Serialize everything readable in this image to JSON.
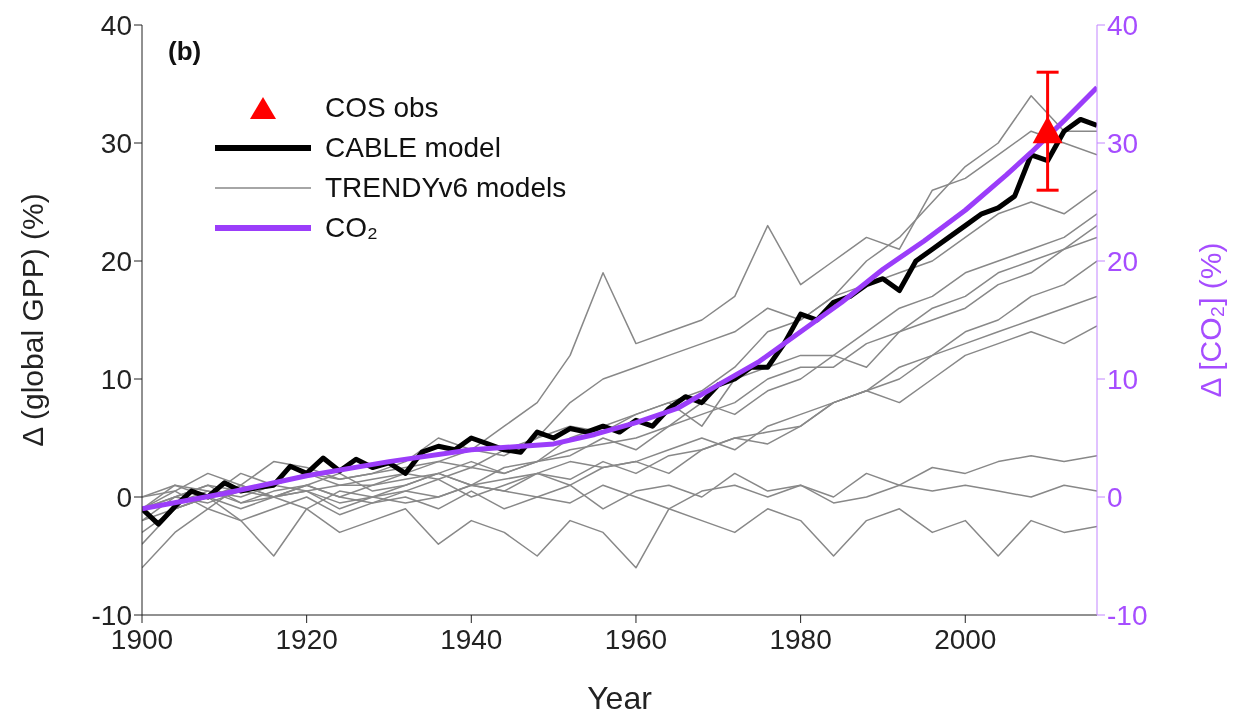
{
  "chart_data": {
    "type": "line",
    "xlabel": "Year",
    "ylabel": "Δ (global GPP) (%)",
    "y2label": "Δ [CO₂] (%)",
    "annotations": [
      "(b)"
    ],
    "xlim": [
      1900,
      2016
    ],
    "xticks": [
      1900,
      1920,
      1940,
      1960,
      1980,
      2000
    ],
    "ylim": [
      -10,
      40
    ],
    "yticks": [
      -10,
      0,
      10,
      20,
      30,
      40
    ],
    "y2lim": [
      -10,
      40
    ],
    "y2ticks": [
      -10,
      0,
      10,
      20,
      30,
      40
    ],
    "legend": "top left",
    "grid": false,
    "x": [
      1900,
      1904,
      1908,
      1912,
      1916,
      1920,
      1924,
      1928,
      1932,
      1936,
      1940,
      1944,
      1948,
      1952,
      1956,
      1960,
      1964,
      1968,
      1972,
      1976,
      1980,
      1984,
      1988,
      1992,
      1996,
      2000,
      2004,
      2008,
      2012,
      2016
    ],
    "series": [
      {
        "type": "scatter",
        "name": "COS obs",
        "color": "#ff0000",
        "marker": "triangle",
        "x": [
          2010
        ],
        "values": [
          31
        ],
        "errors": [
          [
            26,
            36
          ]
        ]
      },
      {
        "name": "CABLE model",
        "color": "#000000",
        "x": [
          1900,
          1902,
          1904,
          1906,
          1908,
          1910,
          1912,
          1914,
          1916,
          1918,
          1920,
          1922,
          1924,
          1926,
          1928,
          1930,
          1932,
          1934,
          1936,
          1938,
          1940,
          1942,
          1944,
          1946,
          1948,
          1950,
          1952,
          1954,
          1956,
          1958,
          1960,
          1962,
          1964,
          1966,
          1968,
          1970,
          1972,
          1974,
          1976,
          1978,
          1980,
          1982,
          1984,
          1986,
          1988,
          1990,
          1992,
          1994,
          1996,
          1998,
          2000,
          2002,
          2004,
          2006,
          2008,
          2010,
          2012,
          2014,
          2016
        ],
        "values": [
          -1,
          -2.3,
          -0.8,
          0.5,
          0,
          1.2,
          0.5,
          0.8,
          1,
          2.6,
          2,
          3.3,
          2.2,
          3.2,
          2.5,
          2.9,
          2,
          3.8,
          4.3,
          4,
          5,
          4.5,
          4,
          3.8,
          5.5,
          5,
          5.8,
          5.5,
          6,
          5.5,
          6.5,
          6,
          7.5,
          8.5,
          8,
          9.5,
          10,
          11,
          11,
          13,
          15.5,
          15,
          16.5,
          17,
          18,
          18.5,
          17.5,
          20,
          21,
          22,
          23,
          24,
          24.5,
          25.5,
          29,
          28.5,
          31,
          32,
          31.5
        ]
      },
      {
        "name": "TRENDYv6 models",
        "color": "#888888",
        "values": [
          -1,
          0,
          1,
          0.5,
          1,
          2,
          1.5,
          2,
          2.5,
          3,
          4,
          3.5,
          5,
          6,
          5.5,
          7,
          8,
          9,
          11,
          14,
          15,
          17,
          20,
          22,
          25,
          28,
          30,
          34,
          31,
          31
        ]
      },
      {
        "name": "CO₂",
        "color": "#9b3dfa",
        "axis": "y2",
        "x": [
          1900,
          1910,
          1920,
          1930,
          1940,
          1950,
          1955,
          1960,
          1965,
          1970,
          1975,
          1980,
          1985,
          1990,
          1995,
          2000,
          2005,
          2008,
          2012,
          2016
        ],
        "values": [
          -1,
          0.3,
          1.8,
          3,
          4,
          4.5,
          5.3,
          6.3,
          7.5,
          9.5,
          11.5,
          14,
          16.5,
          19.3,
          21.7,
          24.3,
          27.3,
          29.2,
          31.9,
          34.7
        ]
      },
      {
        "type": "line",
        "color": "#888888",
        "values": [
          -1,
          0.5,
          2,
          1,
          3,
          2.5,
          1.5,
          2,
          3,
          5,
          4,
          6,
          8,
          12,
          19,
          13,
          14,
          15,
          17,
          23,
          18,
          20,
          22,
          21,
          26,
          27,
          29,
          31,
          30,
          29
        ]
      },
      {
        "type": "line",
        "color": "#888888",
        "values": [
          -1,
          1,
          0,
          2,
          1,
          2,
          1,
          1.5,
          2,
          3,
          2.5,
          4,
          5,
          8,
          10,
          11,
          12,
          13,
          14,
          16,
          15,
          17,
          18,
          19,
          20,
          22,
          24,
          25,
          24,
          26
        ]
      },
      {
        "type": "line",
        "color": "#888888",
        "values": [
          0,
          0.5,
          -1,
          1,
          0,
          1,
          2,
          0.5,
          1,
          2,
          3,
          2,
          3,
          5,
          6,
          7,
          8,
          6,
          10,
          11,
          12,
          12,
          14,
          16,
          17,
          19,
          20,
          21,
          22,
          24
        ]
      },
      {
        "type": "line",
        "color": "#888888",
        "values": [
          -2,
          0,
          1,
          -0.5,
          0.5,
          1,
          0,
          1,
          1.5,
          2,
          1,
          2.5,
          3,
          4,
          4.5,
          5,
          6,
          7,
          8,
          10,
          11,
          11,
          13,
          14,
          16,
          17,
          19,
          20,
          21,
          23
        ]
      },
      {
        "type": "line",
        "color": "#888888",
        "values": [
          -1,
          -0.5,
          0.5,
          0,
          1,
          0.5,
          1,
          1,
          2,
          1.5,
          2.5,
          2,
          3,
          3.5,
          5,
          4,
          6,
          8,
          7,
          9,
          10,
          12,
          11,
          14,
          15,
          16,
          18,
          19,
          21,
          22
        ]
      },
      {
        "type": "line",
        "color": "#888888",
        "values": [
          -3,
          -1,
          0,
          1,
          0,
          0.5,
          -0.5,
          0,
          1,
          2,
          1,
          1.5,
          2,
          3,
          2.5,
          3,
          4,
          5,
          4,
          6,
          7,
          8,
          9,
          11,
          12,
          14,
          15,
          17,
          18,
          20
        ]
      },
      {
        "type": "line",
        "color": "#888888",
        "values": [
          -1,
          0,
          -0.5,
          0.5,
          0,
          1,
          0,
          -0.5,
          0.5,
          1.5,
          0,
          1,
          2,
          1,
          2.5,
          3,
          2,
          4,
          5,
          5.5,
          6,
          8,
          9,
          10,
          12,
          13,
          14,
          15,
          16,
          17
        ]
      },
      {
        "type": "line",
        "color": "#888888",
        "values": [
          -2,
          -1,
          0,
          -1,
          0,
          0.5,
          -1,
          0,
          0.5,
          0,
          1,
          0.5,
          2,
          1.5,
          3,
          2,
          3.5,
          4,
          5,
          4.5,
          6,
          8,
          9,
          8,
          10,
          12,
          13,
          14,
          13,
          14.5
        ]
      },
      {
        "type": "line",
        "color": "#888888",
        "values": [
          0,
          1,
          0.5,
          -0.5,
          0,
          -1,
          0.5,
          0,
          -0.5,
          0,
          1,
          0.5,
          0,
          1,
          -1,
          0.5,
          1,
          0,
          2,
          0.5,
          1,
          0,
          2,
          1,
          2.5,
          2,
          3,
          3.5,
          3,
          3.5
        ]
      },
      {
        "type": "line",
        "color": "#888888",
        "values": [
          -4,
          -1,
          0,
          -2,
          -1,
          0,
          -1.5,
          -0.5,
          0,
          -1,
          0.5,
          -1,
          0,
          -0.5,
          1,
          0,
          -1,
          0.5,
          1,
          0,
          1,
          -0.5,
          0,
          1,
          0.5,
          1,
          0.5,
          0,
          1,
          0.5
        ]
      },
      {
        "type": "line",
        "color": "#888888",
        "values": [
          -6,
          -3,
          -1,
          -2,
          -5,
          -1,
          -3,
          -2,
          -1,
          -4,
          -2,
          -3,
          -5,
          -2,
          -3,
          -6,
          -1,
          -2,
          -3,
          -1,
          -2,
          -5,
          -2,
          -1,
          -3,
          -2,
          -5,
          -2,
          -3,
          -2.5
        ]
      }
    ]
  }
}
